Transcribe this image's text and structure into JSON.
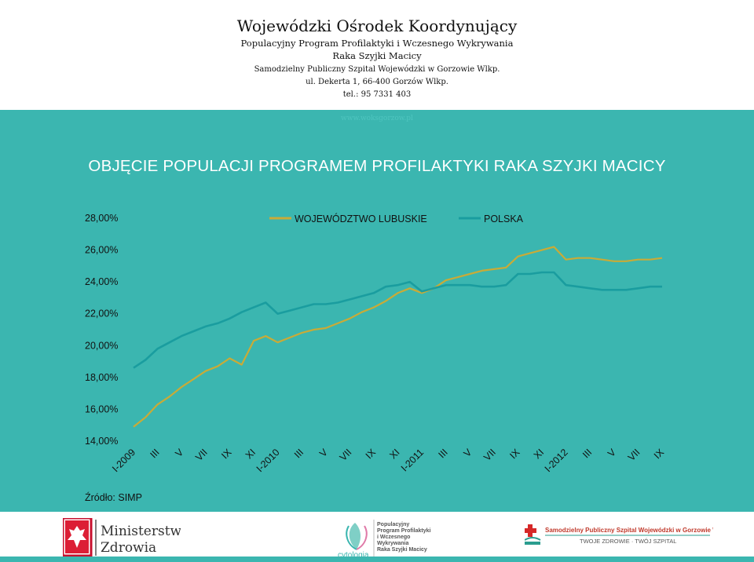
{
  "header": {
    "org": "Wojewódzki Ośrodek Koordynujący",
    "program_line1": "Populacyjny Program Profilaktyki i Wczesnego Wykrywania",
    "program_line2": "Raka Szyjki Macicy",
    "hospital": "Samodzielny Publiczny Szpital Wojewódzki w Gorzowie Wlkp.",
    "address": "ul. Dekerta 1, 66-400 Gorzów Wlkp.",
    "phone": "tel.: 95 7331 403",
    "website": "www.woksgorzow.pl"
  },
  "page_title": "OBJĘCIE POPULACJI PROGRAMEM PROFILAKTYKI RAKA SZYJKI MACICY",
  "source": "Źródło: SIMP",
  "colors": {
    "panel": "#3bb6b0",
    "lubuskie": "#c9ab37",
    "polska": "#1a9d9f"
  },
  "chart_data": {
    "type": "line",
    "title": "",
    "xlabel": "",
    "ylabel": "",
    "ylim": [
      0.14,
      0.28
    ],
    "yticks": [
      "28,00%",
      "26,00%",
      "24,00%",
      "22,00%",
      "20,00%",
      "18,00%",
      "16,00%",
      "14,00%"
    ],
    "ytick_values": [
      0.28,
      0.26,
      0.24,
      0.22,
      0.2,
      0.18,
      0.16,
      0.14
    ],
    "xtick_labels": [
      "I-2009",
      "III",
      "V",
      "VII",
      "IX",
      "XI",
      "I-2010",
      "III",
      "V",
      "VII",
      "IX",
      "XI",
      "I-2011",
      "III",
      "V",
      "VII",
      "IX",
      "XI",
      "I-2012",
      "III",
      "V",
      "VII",
      "IX"
    ],
    "xtick_index": [
      0,
      2,
      4,
      6,
      8,
      10,
      12,
      14,
      16,
      18,
      20,
      22,
      24,
      26,
      28,
      30,
      32,
      34,
      36,
      38,
      40,
      42,
      44
    ],
    "grid": false,
    "legend": "top-center",
    "series": [
      {
        "name": "WOJEWÓDZTWO LUBUSKIE",
        "color": "#c9ab37",
        "values": [
          0.149,
          0.155,
          0.163,
          0.168,
          0.174,
          0.179,
          0.184,
          0.187,
          0.192,
          0.188,
          0.203,
          0.206,
          0.202,
          0.205,
          0.208,
          0.21,
          0.211,
          0.214,
          0.217,
          0.221,
          0.224,
          0.228,
          0.233,
          0.236,
          0.233,
          0.236,
          0.241,
          0.243,
          0.245,
          0.247,
          0.248,
          0.249,
          0.256,
          0.258,
          0.26,
          0.262,
          0.254,
          0.255,
          0.255,
          0.254,
          0.253,
          0.253,
          0.254,
          0.254,
          0.255
        ]
      },
      {
        "name": "POLSKA",
        "color": "#1a9d9f",
        "values": [
          0.186,
          0.191,
          0.198,
          0.202,
          0.206,
          0.209,
          0.212,
          0.214,
          0.217,
          0.221,
          0.224,
          0.227,
          0.22,
          0.222,
          0.224,
          0.226,
          0.226,
          0.227,
          0.229,
          0.231,
          0.233,
          0.237,
          0.238,
          0.24,
          0.234,
          0.236,
          0.238,
          0.238,
          0.238,
          0.237,
          0.237,
          0.238,
          0.245,
          0.245,
          0.246,
          0.246,
          0.238,
          0.237,
          0.236,
          0.235,
          0.235,
          0.235,
          0.236,
          0.237,
          0.237
        ]
      }
    ]
  }
}
